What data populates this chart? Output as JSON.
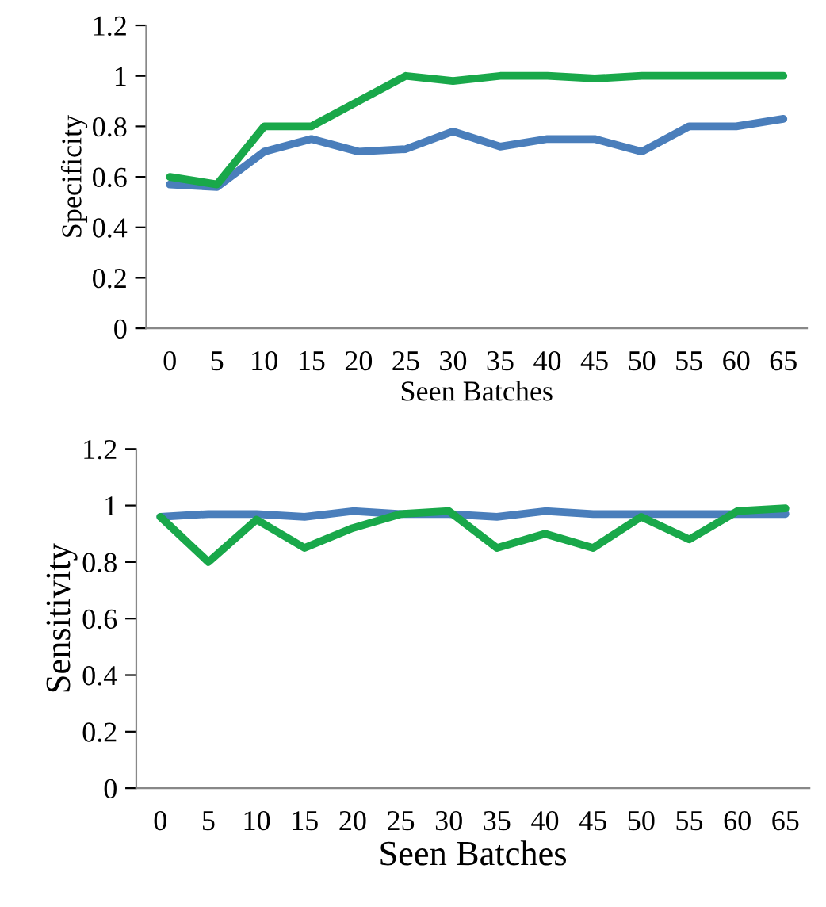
{
  "chart_data": [
    {
      "type": "line",
      "xlabel": "Seen Batches",
      "ylabel": "Specificity",
      "categories": [
        "0",
        "5",
        "10",
        "15",
        "20",
        "25",
        "30",
        "35",
        "40",
        "45",
        "50",
        "55",
        "60",
        "65"
      ],
      "ylim": [
        0,
        1.2
      ],
      "yticks": [
        0,
        0.2,
        0.4,
        0.6,
        0.8,
        1,
        1.2
      ],
      "grid": false,
      "legend": false,
      "marker": "none",
      "line_style": "solid",
      "series": [
        {
          "color": "#4a7ebb",
          "values": [
            0.57,
            0.56,
            0.7,
            0.75,
            0.7,
            0.71,
            0.78,
            0.72,
            0.75,
            0.75,
            0.7,
            0.8,
            0.8,
            0.83
          ]
        },
        {
          "color": "#19a84a",
          "values": [
            0.6,
            0.57,
            0.8,
            0.8,
            0.9,
            1.0,
            0.98,
            1.0,
            1.0,
            0.99,
            1.0,
            1.0,
            1.0,
            1.0
          ]
        }
      ]
    },
    {
      "type": "line",
      "xlabel": "Seen Batches",
      "ylabel": "Sensitivity",
      "categories": [
        "0",
        "5",
        "10",
        "15",
        "20",
        "25",
        "30",
        "35",
        "40",
        "45",
        "50",
        "55",
        "60",
        "65"
      ],
      "ylim": [
        0,
        1.2
      ],
      "yticks": [
        0,
        0.2,
        0.4,
        0.6,
        0.8,
        1,
        1.2
      ],
      "grid": false,
      "legend": false,
      "marker": "none",
      "line_style": "solid",
      "series": [
        {
          "color": "#4a7ebb",
          "values": [
            0.96,
            0.97,
            0.97,
            0.96,
            0.98,
            0.97,
            0.97,
            0.96,
            0.98,
            0.97,
            0.97,
            0.97,
            0.97,
            0.97
          ]
        },
        {
          "color": "#19a84a",
          "values": [
            0.96,
            0.8,
            0.95,
            0.85,
            0.92,
            0.97,
            0.98,
            0.85,
            0.9,
            0.85,
            0.96,
            0.88,
            0.98,
            0.99
          ]
        }
      ]
    }
  ]
}
